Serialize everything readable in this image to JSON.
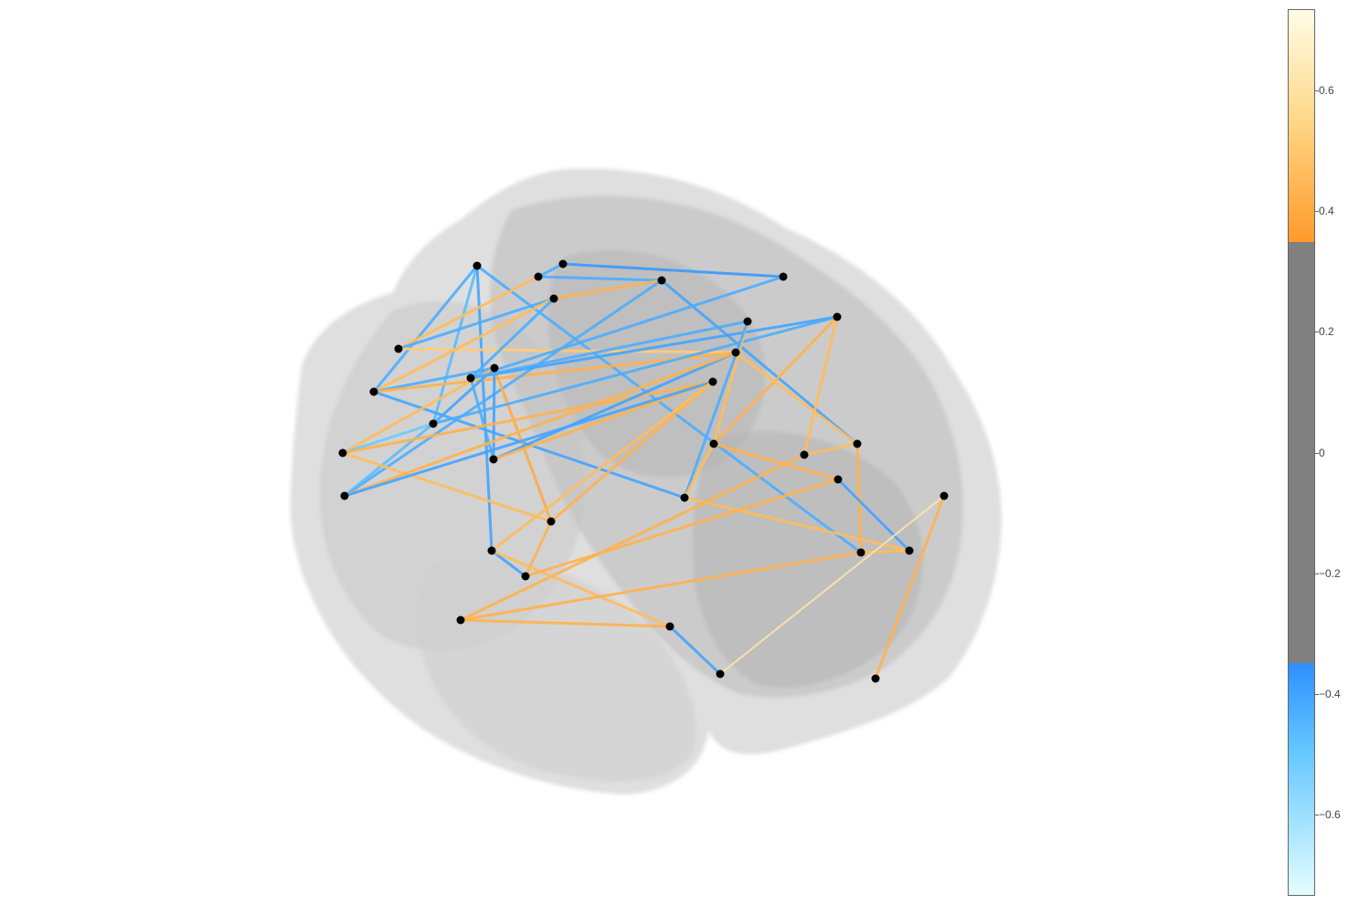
{
  "colorbar": {
    "ticks": [
      "0.6",
      "0.4",
      "0.2",
      "0",
      "−0.2",
      "−0.4",
      "−0.6"
    ],
    "tick_values": [
      0.6,
      0.4,
      0.2,
      0,
      -0.2,
      -0.4,
      -0.6
    ],
    "range": [
      -0.735,
      0.735
    ],
    "threshold": 0.35,
    "colors": {
      "max": "#fffde6",
      "high_mid": "#ffd98a",
      "high": "#ff9a2a",
      "neutral": "#808080",
      "low": "#2e90ff",
      "low_mid": "#66c8ff",
      "min": "#e4fdff"
    }
  },
  "brain": {
    "fill": "#c8c8c8",
    "nodes_color": "#000000"
  },
  "nodes": [
    {
      "id": "n1"
    },
    {
      "id": "n2"
    },
    {
      "id": "n3"
    },
    {
      "id": "n4"
    },
    {
      "id": "n5"
    },
    {
      "id": "n6"
    },
    {
      "id": "n7"
    },
    {
      "id": "n8"
    },
    {
      "id": "n9"
    },
    {
      "id": "n10"
    },
    {
      "id": "n11"
    },
    {
      "id": "n12"
    },
    {
      "id": "n13"
    },
    {
      "id": "n14"
    },
    {
      "id": "n15"
    },
    {
      "id": "n16"
    },
    {
      "id": "n17"
    },
    {
      "id": "n18"
    },
    {
      "id": "n19"
    },
    {
      "id": "n20"
    },
    {
      "id": "n21"
    },
    {
      "id": "n22"
    },
    {
      "id": "n23"
    },
    {
      "id": "n24"
    },
    {
      "id": "n25"
    },
    {
      "id": "n26"
    },
    {
      "id": "n27"
    },
    {
      "id": "n28"
    },
    {
      "id": "n29"
    },
    {
      "id": "n30"
    },
    {
      "id": "n31"
    },
    {
      "id": "n32"
    },
    {
      "id": "n33"
    }
  ],
  "edges": [
    {
      "a": "n1",
      "b": "n5",
      "v": -0.45
    },
    {
      "a": "n1",
      "b": "n12",
      "v": -0.5
    },
    {
      "a": "n1",
      "b": "n24",
      "v": -0.42
    },
    {
      "a": "n1",
      "b": "n28",
      "v": -0.45
    },
    {
      "a": "n2",
      "b": "n3",
      "v": 0.45
    },
    {
      "a": "n2",
      "b": "n6",
      "v": -0.45
    },
    {
      "a": "n2",
      "b": "n16",
      "v": 0.5
    },
    {
      "a": "n3",
      "b": "n4",
      "v": -0.45
    },
    {
      "a": "n3",
      "b": "n7",
      "v": -0.45
    },
    {
      "a": "n4",
      "b": "n8",
      "v": -0.38
    },
    {
      "a": "n5",
      "b": "n6",
      "v": 0.45
    },
    {
      "a": "n5",
      "b": "n9",
      "v": -0.45
    },
    {
      "a": "n5",
      "b": "n16",
      "v": 0.42
    },
    {
      "a": "n5",
      "b": "n21",
      "v": -0.42
    },
    {
      "a": "n6",
      "b": "n7",
      "v": 0.42
    },
    {
      "a": "n6",
      "b": "n10",
      "v": -0.45
    },
    {
      "a": "n7",
      "b": "n17",
      "v": -0.45
    },
    {
      "a": "n7",
      "b": "n22",
      "v": -0.42
    },
    {
      "a": "n8",
      "b": "n10",
      "v": -0.45
    },
    {
      "a": "n9",
      "b": "n10",
      "v": -0.45
    },
    {
      "a": "n9",
      "b": "n12",
      "v": -0.42
    },
    {
      "a": "n9",
      "b": "n13",
      "v": 0.45
    },
    {
      "a": "n9",
      "b": "n14",
      "v": -0.42
    },
    {
      "a": "n9",
      "b": "n19",
      "v": 0.4
    },
    {
      "a": "n10",
      "b": "n11",
      "v": -0.42
    },
    {
      "a": "n10",
      "b": "n14",
      "v": -0.45
    },
    {
      "a": "n10",
      "b": "n15",
      "v": -0.45
    },
    {
      "a": "n11",
      "b": "n12",
      "v": -0.45
    },
    {
      "a": "n11",
      "b": "n20",
      "v": 0.42
    },
    {
      "a": "n11",
      "b": "n23",
      "v": 0.45
    },
    {
      "a": "n12",
      "b": "n13",
      "v": -0.55
    },
    {
      "a": "n12",
      "b": "n17",
      "v": -0.5
    },
    {
      "a": "n13",
      "b": "n18",
      "v": 0.42
    },
    {
      "a": "n13",
      "b": "n19",
      "v": 0.45
    },
    {
      "a": "n14",
      "b": "n16",
      "v": -0.42
    },
    {
      "a": "n14",
      "b": "n18",
      "v": 0.42
    },
    {
      "a": "n15",
      "b": "n20",
      "v": 0.45
    },
    {
      "a": "n15",
      "b": "n21",
      "v": -0.45
    },
    {
      "a": "n16",
      "b": "n17",
      "v": 0.42
    },
    {
      "a": "n16",
      "b": "n22",
      "v": 0.45
    },
    {
      "a": "n17",
      "b": "n18",
      "v": -0.42
    },
    {
      "a": "n18",
      "b": "n19",
      "v": 0.42
    },
    {
      "a": "n18",
      "b": "n24",
      "v": 0.45
    },
    {
      "a": "n19",
      "b": "n25",
      "v": 0.42
    },
    {
      "a": "n20",
      "b": "n21",
      "v": 0.45
    },
    {
      "a": "n20",
      "b": "n26",
      "v": 0.42
    },
    {
      "a": "n21",
      "b": "n27",
      "v": 0.45
    },
    {
      "a": "n22",
      "b": "n23",
      "v": 0.45
    },
    {
      "a": "n22",
      "b": "n28",
      "v": 0.42
    },
    {
      "a": "n23",
      "b": "n29",
      "v": 0.42
    },
    {
      "a": "n24",
      "b": "n25",
      "v": -0.42
    },
    {
      "a": "n24",
      "b": "n30",
      "v": 0.45
    },
    {
      "a": "n25",
      "b": "n26",
      "v": 0.42
    },
    {
      "a": "n26",
      "b": "n27",
      "v": -0.42
    },
    {
      "a": "n27",
      "b": "n28",
      "v": 0.45
    },
    {
      "a": "n28",
      "b": "n29",
      "v": 0.42
    },
    {
      "a": "n29",
      "b": "n30",
      "v": 0.42
    },
    {
      "a": "n30",
      "b": "n31",
      "v": -0.42
    },
    {
      "a": "n31",
      "b": "n32",
      "v": 0.6
    },
    {
      "a": "n32",
      "b": "n33",
      "v": 0.42
    }
  ]
}
